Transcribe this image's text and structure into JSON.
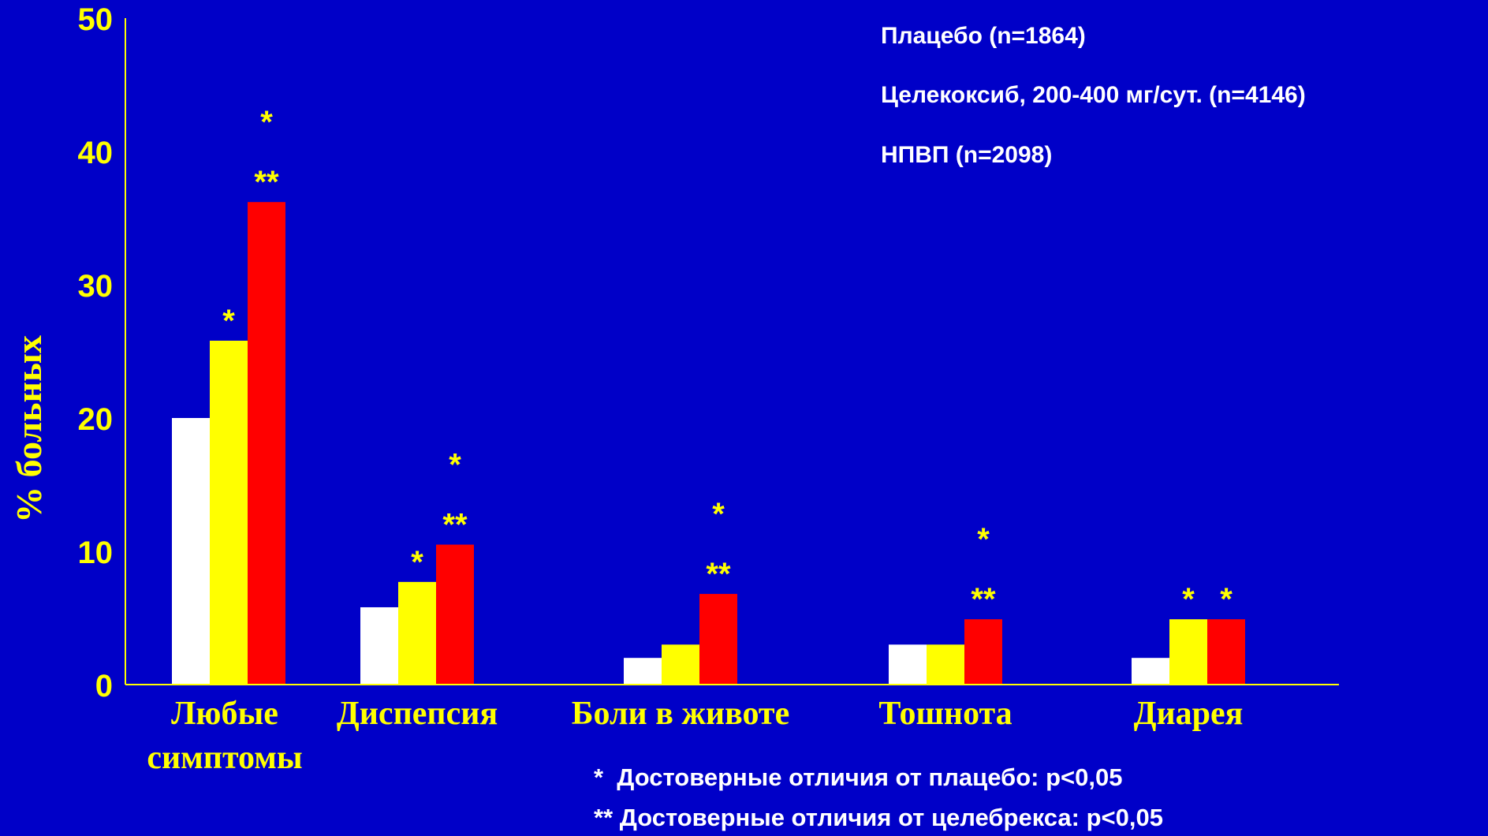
{
  "chart_data": {
    "type": "bar",
    "ylabel": "% больных",
    "ylim": [
      0,
      50
    ],
    "yticks": [
      0,
      10,
      20,
      30,
      40,
      50
    ],
    "categories": [
      [
        "Любые",
        "симптомы"
      ],
      [
        "Диспепсия"
      ],
      [
        "Боли в животе"
      ],
      [
        "Тошнота"
      ],
      [
        "Диарея"
      ]
    ],
    "series": [
      {
        "name": "Плацебо (n=1864)",
        "color": "#ffffff",
        "values": [
          20,
          5.8,
          2,
          3,
          2
        ]
      },
      {
        "name": "Целекоксиб, 200-400 мг/сут. (n=4146)",
        "color": "#ffff00",
        "values": [
          25.8,
          7.7,
          3,
          3,
          4.9
        ]
      },
      {
        "name": "НПВП (n=2098)",
        "color": "#ff0000",
        "values": [
          36.2,
          10.5,
          6.8,
          4.9,
          4.9
        ]
      }
    ],
    "significance_marks": [
      {
        "category": 0,
        "series": 1,
        "labels": [
          "*"
        ]
      },
      {
        "category": 0,
        "series": 2,
        "labels": [
          "*",
          "**"
        ]
      },
      {
        "category": 1,
        "series": 1,
        "labels": [
          "*"
        ]
      },
      {
        "category": 1,
        "series": 2,
        "labels": [
          "*",
          "**"
        ]
      },
      {
        "category": 2,
        "series": 2,
        "labels": [
          "*",
          "**"
        ]
      },
      {
        "category": 3,
        "series": 2,
        "labels": [
          "*",
          "**"
        ]
      },
      {
        "category": 4,
        "series": 1,
        "labels": [
          "*"
        ]
      },
      {
        "category": 4,
        "series": 2,
        "labels": [
          "*"
        ]
      }
    ],
    "footnotes": [
      "*  Достоверные отличия от плацебо: p<0,05",
      "** Достоверные отличия от целебрекса: p<0,05"
    ],
    "legend_placement": "top-right",
    "axis_color": "#ffff00",
    "background": "#0000c8",
    "grid": false
  }
}
